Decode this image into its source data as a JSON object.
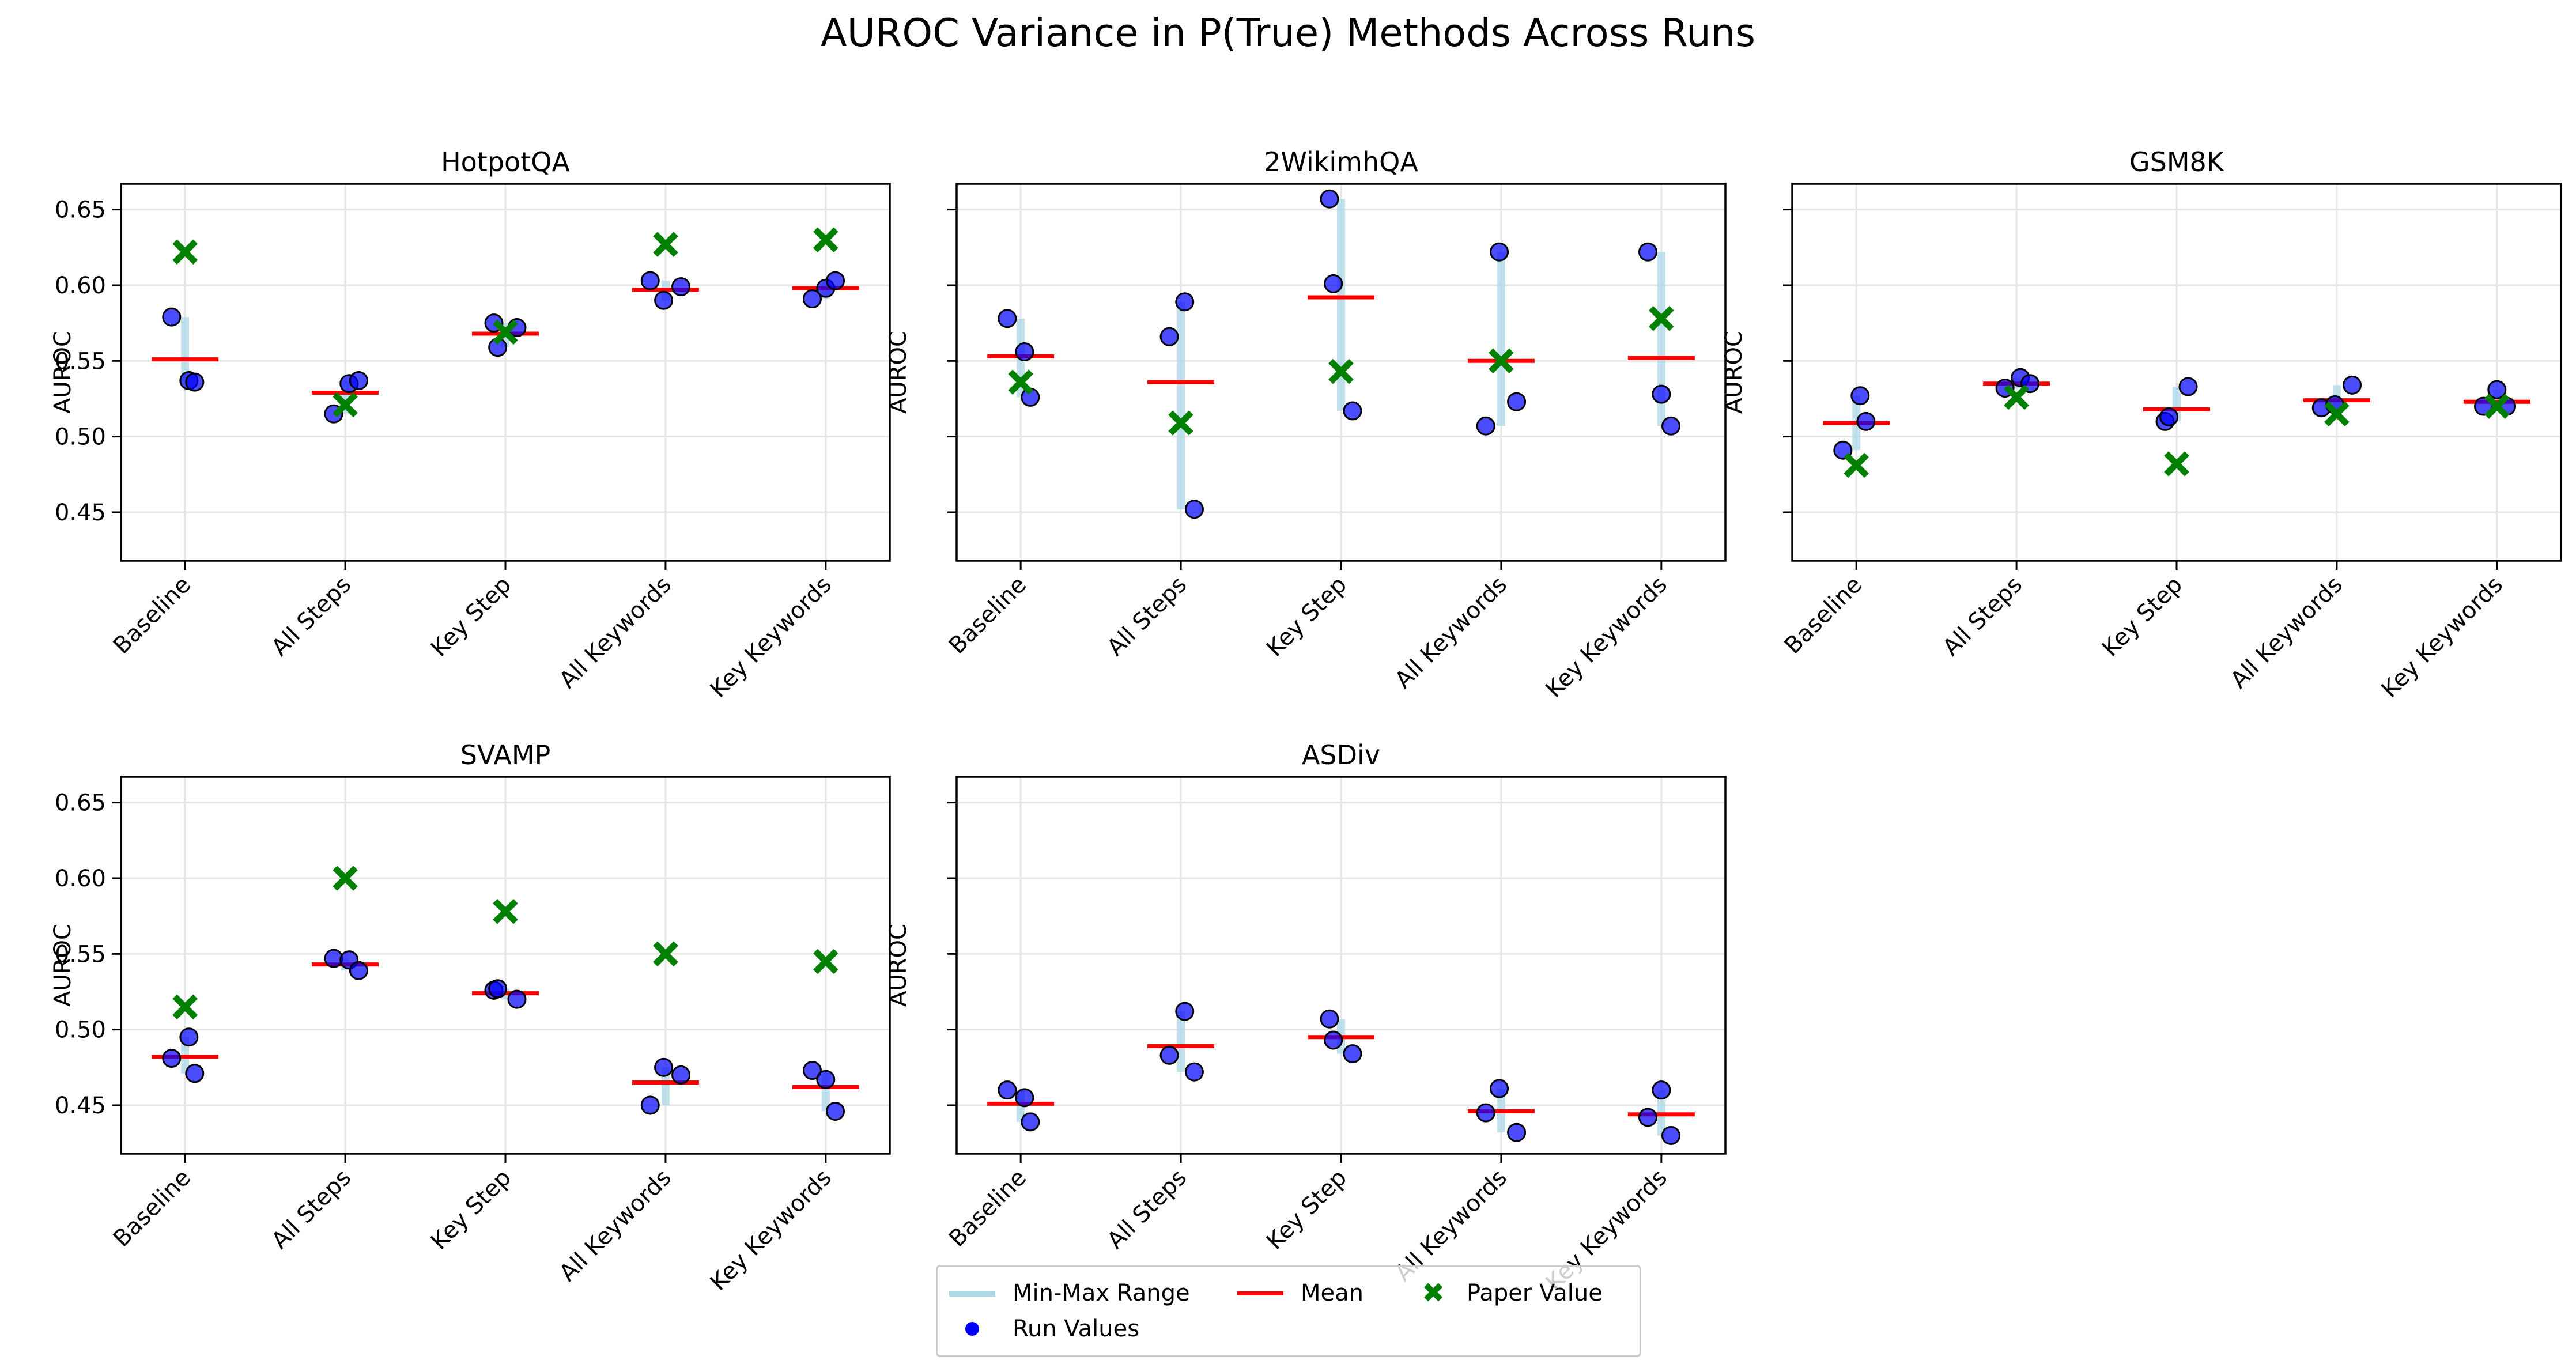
{
  "suptitle": "AUROC Variance in P(True) Methods Across Runs",
  "chart_data": {
    "type": "scatter",
    "title": "AUROC Variance in P(True) Methods Across Runs",
    "categories": [
      "Baseline",
      "All Steps",
      "Key Step",
      "All Keywords",
      "Key Keywords"
    ],
    "ylabel": "AUROC",
    "ylim": [
      0.418,
      0.667
    ],
    "yticks": [
      0.45,
      0.5,
      0.55,
      0.6,
      0.65
    ],
    "ytick_labels": [
      "0.45",
      "0.50",
      "0.55",
      "0.60",
      "0.65"
    ],
    "grid": true,
    "legend_position": "bottom-center",
    "legend": [
      "Min-Max Range",
      "Mean",
      "Paper Value",
      "Run Values"
    ],
    "colors": {
      "range": "#add8e6",
      "mean": "#ff0000",
      "paper": "#008000",
      "runs": "#0000ff"
    },
    "panels": [
      {
        "title": "HotpotQA",
        "runs": [
          [
            0.579,
            0.537,
            0.536
          ],
          [
            0.515,
            0.535,
            0.537
          ],
          [
            0.575,
            0.559,
            0.572
          ],
          [
            0.603,
            0.59,
            0.599
          ],
          [
            0.591,
            0.598,
            0.603
          ]
        ],
        "mean": [
          0.551,
          0.529,
          0.568,
          0.597,
          0.598
        ],
        "paper": [
          0.622,
          0.521,
          0.569,
          0.627,
          0.63
        ]
      },
      {
        "title": "2WikimhQA",
        "runs": [
          [
            0.578,
            0.556,
            0.526
          ],
          [
            0.566,
            0.589,
            0.452
          ],
          [
            0.657,
            0.601,
            0.517
          ],
          [
            0.507,
            0.622,
            0.523
          ],
          [
            0.622,
            0.528,
            0.507
          ]
        ],
        "mean": [
          0.553,
          0.536,
          0.592,
          0.55,
          0.552
        ],
        "paper": [
          0.536,
          0.509,
          0.543,
          0.55,
          0.578
        ]
      },
      {
        "title": "GSM8K",
        "runs": [
          [
            0.491,
            0.527,
            0.51
          ],
          [
            0.532,
            0.539,
            0.535
          ],
          [
            0.51,
            0.513,
            0.533
          ],
          [
            0.519,
            0.521,
            0.534
          ],
          [
            0.52,
            0.531,
            0.52
          ]
        ],
        "mean": [
          0.509,
          0.535,
          0.518,
          0.524,
          0.523
        ],
        "paper": [
          0.481,
          0.526,
          0.482,
          0.515,
          0.52
        ]
      },
      {
        "title": "SVAMP",
        "runs": [
          [
            0.481,
            0.495,
            0.471
          ],
          [
            0.547,
            0.546,
            0.539
          ],
          [
            0.526,
            0.527,
            0.52
          ],
          [
            0.45,
            0.475,
            0.47
          ],
          [
            0.473,
            0.467,
            0.446
          ]
        ],
        "mean": [
          0.482,
          0.543,
          0.524,
          0.465,
          0.462
        ],
        "paper": [
          0.515,
          0.6,
          0.578,
          0.55,
          0.545
        ]
      },
      {
        "title": "ASDiv",
        "runs": [
          [
            0.46,
            0.455,
            0.439
          ],
          [
            0.483,
            0.512,
            0.472
          ],
          [
            0.507,
            0.493,
            0.484
          ],
          [
            0.445,
            0.461,
            0.432
          ],
          [
            0.442,
            0.46,
            0.43
          ]
        ],
        "mean": [
          0.451,
          0.489,
          0.495,
          0.446,
          0.444
        ],
        "paper": [
          null,
          null,
          null,
          null,
          null
        ]
      }
    ]
  }
}
